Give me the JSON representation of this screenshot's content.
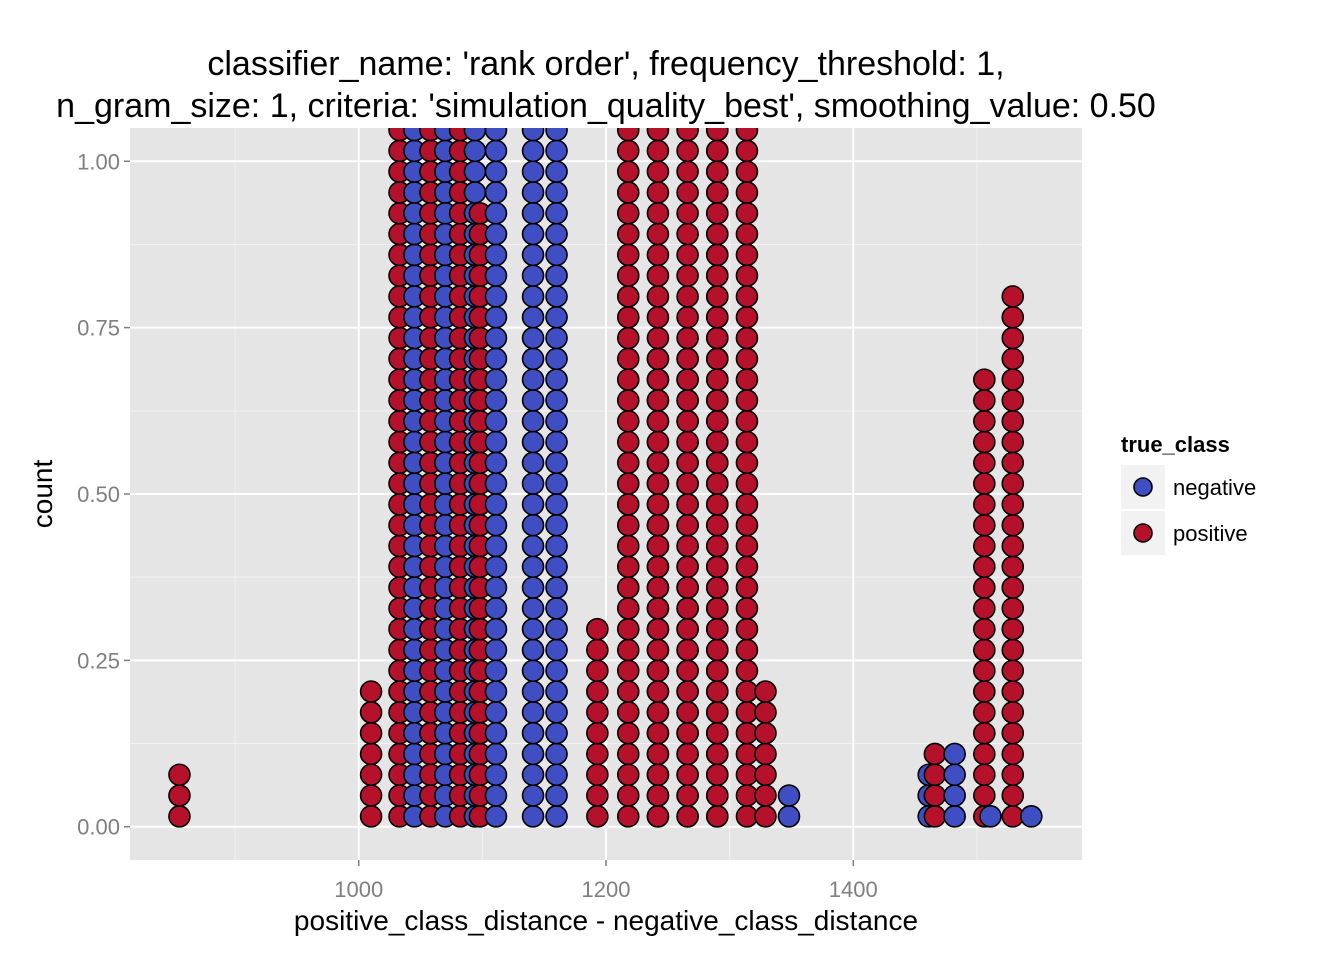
{
  "chart_data": {
    "type": "scatter",
    "subtype": "dotplot",
    "title_lines": [
      "classifier_name: 'rank order', frequency_threshold: 1,",
      "n_gram_size: 1, criteria: 'simulation_quality_best', smoothing_value: 0.50"
    ],
    "xlabel": "positive_class_distance - negative_class_distance",
    "ylabel": "count",
    "xlim": [
      815,
      1585
    ],
    "ylim": [
      -0.05,
      1.05
    ],
    "x_ticks": [
      1000,
      1200,
      1400
    ],
    "x_tick_labels": [
      "1000",
      "1200",
      "1400"
    ],
    "y_ticks": [
      0,
      0.25,
      0.5,
      0.75,
      1.0
    ],
    "y_tick_labels": [
      "0.00",
      "0.25",
      "0.50",
      "0.75",
      "1.00"
    ],
    "grid": true,
    "legend": {
      "title": "true_class",
      "placement": "right",
      "entries": [
        {
          "name": "negative",
          "color": "#3f4ec2"
        },
        {
          "name": "positive",
          "color": "#b5112b"
        }
      ]
    },
    "colors": {
      "negative": "#3f4ec2",
      "positive": "#b5112b",
      "panel": "#e5e5e5",
      "grid": "#ffffff"
    },
    "dot_step": 0.03125,
    "dot_base": 0.015625,
    "columns": [
      {
        "x": 855,
        "class": "positive",
        "n": 3
      },
      {
        "x": 1010,
        "class": "positive",
        "n": 7
      },
      {
        "x": 1033,
        "class": "positive",
        "n": 34
      },
      {
        "x": 1045,
        "class": "negative",
        "n": 34
      },
      {
        "x": 1058,
        "class": "positive",
        "n": 34
      },
      {
        "x": 1070,
        "class": "negative",
        "n": 34
      },
      {
        "x": 1082,
        "class": "positive",
        "n": 34
      },
      {
        "x": 1094,
        "class": "negative",
        "n": 34
      },
      {
        "x": 1098,
        "class": "positive",
        "n": 30
      },
      {
        "x": 1111,
        "class": "negative",
        "n": 34
      },
      {
        "x": 1141,
        "class": "negative",
        "n": 34
      },
      {
        "x": 1160,
        "class": "negative",
        "n": 34
      },
      {
        "x": 1193,
        "class": "positive",
        "n": 10
      },
      {
        "x": 1218,
        "class": "positive",
        "n": 34
      },
      {
        "x": 1242,
        "class": "negative",
        "n": 23
      },
      {
        "x": 1242,
        "class": "positive",
        "n": 34
      },
      {
        "x": 1266,
        "class": "negative",
        "n": 23
      },
      {
        "x": 1266,
        "class": "positive",
        "n": 34
      },
      {
        "x": 1290,
        "class": "negative",
        "n": 34
      },
      {
        "x": 1290,
        "class": "positive",
        "n": 34
      },
      {
        "x": 1314,
        "class": "positive",
        "n": 34
      },
      {
        "x": 1329,
        "class": "positive",
        "n": 7
      },
      {
        "x": 1348,
        "class": "negative",
        "n": 2
      },
      {
        "x": 1461,
        "class": "negative",
        "n": 3
      },
      {
        "x": 1466,
        "class": "positive",
        "n": 4
      },
      {
        "x": 1482,
        "class": "negative",
        "n": 4
      },
      {
        "x": 1506,
        "class": "positive",
        "n": 22
      },
      {
        "x": 1511,
        "class": "negative",
        "n": 1
      },
      {
        "x": 1529,
        "class": "positive",
        "n": 26
      },
      {
        "x": 1544,
        "class": "negative",
        "n": 1
      }
    ]
  }
}
